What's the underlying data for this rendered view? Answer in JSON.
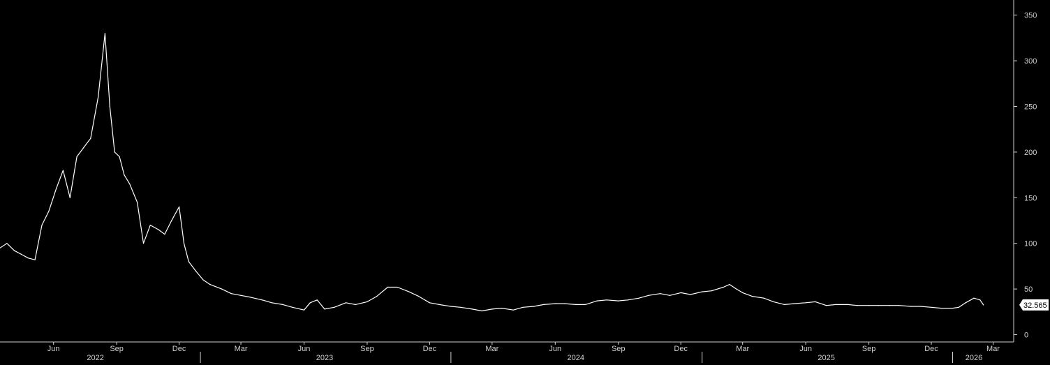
{
  "chart_data": {
    "type": "line",
    "title": "",
    "xlabel": "",
    "ylabel": "",
    "x_range": [
      "2022-03-15",
      "2026-03-31"
    ],
    "ylim": [
      -8,
      362
    ],
    "y_ticks": [
      0,
      50,
      100,
      150,
      200,
      250,
      300,
      350
    ],
    "y_tick_labels": [
      "0",
      "50",
      "100",
      "150",
      "200",
      "250",
      "300",
      "350"
    ],
    "x_month_ticks": [
      {
        "date": "2022-06-01",
        "label": "Jun"
      },
      {
        "date": "2022-09-01",
        "label": "Sep"
      },
      {
        "date": "2022-12-01",
        "label": "Dec"
      },
      {
        "date": "2023-03-01",
        "label": "Mar"
      },
      {
        "date": "2023-06-01",
        "label": "Jun"
      },
      {
        "date": "2023-09-01",
        "label": "Sep"
      },
      {
        "date": "2023-12-01",
        "label": "Dec"
      },
      {
        "date": "2024-03-01",
        "label": "Mar"
      },
      {
        "date": "2024-06-01",
        "label": "Jun"
      },
      {
        "date": "2024-09-01",
        "label": "Sep"
      },
      {
        "date": "2024-12-01",
        "label": "Dec"
      },
      {
        "date": "2025-03-01",
        "label": "Mar"
      },
      {
        "date": "2025-06-01",
        "label": "Jun"
      },
      {
        "date": "2025-09-01",
        "label": "Sep"
      },
      {
        "date": "2025-12-01",
        "label": "Dec"
      },
      {
        "date": "2026-03-01",
        "label": "Mar"
      }
    ],
    "x_year_labels": [
      {
        "date": "2022-08-01",
        "label": "2022"
      },
      {
        "date": "2023-07-01",
        "label": "2023"
      },
      {
        "date": "2024-07-01",
        "label": "2024"
      },
      {
        "date": "2025-07-01",
        "label": "2025"
      },
      {
        "date": "2026-02-01",
        "label": "2026"
      }
    ],
    "year_separators": [
      "2023-01-01",
      "2024-01-01",
      "2025-01-01",
      "2026-01-01"
    ],
    "grid": false,
    "legend": "none",
    "colors": {
      "background": "#000000",
      "line": "#ffffff",
      "axis": "#cfcfcf"
    },
    "last_value_label": "32.565",
    "series": [
      {
        "x": [
          "2022-03-15",
          "2022-03-25",
          "2022-04-05",
          "2022-04-15",
          "2022-04-25",
          "2022-05-05",
          "2022-05-15",
          "2022-05-25",
          "2022-06-05",
          "2022-06-15",
          "2022-06-25",
          "2022-07-05",
          "2022-07-15",
          "2022-07-25",
          "2022-08-05",
          "2022-08-15",
          "2022-08-22",
          "2022-08-29",
          "2022-09-05",
          "2022-09-12",
          "2022-09-20",
          "2022-10-01",
          "2022-10-10",
          "2022-10-20",
          "2022-11-01",
          "2022-11-10",
          "2022-11-20",
          "2022-12-01",
          "2022-12-08",
          "2022-12-15",
          "2022-12-25",
          "2023-01-05",
          "2023-01-15",
          "2023-02-01",
          "2023-02-15",
          "2023-03-01",
          "2023-03-15",
          "2023-04-01",
          "2023-04-15",
          "2023-05-01",
          "2023-05-15",
          "2023-06-01",
          "2023-06-10",
          "2023-06-20",
          "2023-07-01",
          "2023-07-15",
          "2023-08-01",
          "2023-08-15",
          "2023-09-01",
          "2023-09-15",
          "2023-10-01",
          "2023-10-15",
          "2023-11-01",
          "2023-11-15",
          "2023-12-01",
          "2023-12-15",
          "2024-01-01",
          "2024-01-15",
          "2024-02-01",
          "2024-02-15",
          "2024-03-01",
          "2024-03-15",
          "2024-04-01",
          "2024-04-15",
          "2024-05-01",
          "2024-05-15",
          "2024-06-01",
          "2024-06-15",
          "2024-07-01",
          "2024-07-15",
          "2024-08-01",
          "2024-08-15",
          "2024-09-01",
          "2024-09-15",
          "2024-10-01",
          "2024-10-15",
          "2024-11-01",
          "2024-11-15",
          "2024-12-01",
          "2024-12-15",
          "2025-01-01",
          "2025-01-15",
          "2025-02-01",
          "2025-02-10",
          "2025-02-20",
          "2025-03-01",
          "2025-03-15",
          "2025-04-01",
          "2025-04-15",
          "2025-05-01",
          "2025-05-15",
          "2025-06-01",
          "2025-06-15",
          "2025-07-01",
          "2025-07-15",
          "2025-08-01",
          "2025-08-15",
          "2025-09-01",
          "2025-09-15",
          "2025-10-01",
          "2025-10-15",
          "2025-11-01",
          "2025-11-15",
          "2025-12-01",
          "2025-12-15",
          "2026-01-01",
          "2026-01-10",
          "2026-01-20",
          "2026-02-01",
          "2026-02-10",
          "2026-02-15"
        ],
        "y": [
          95,
          100,
          92,
          88,
          84,
          82,
          120,
          135,
          160,
          180,
          150,
          195,
          205,
          215,
          260,
          330,
          250,
          200,
          195,
          175,
          165,
          145,
          100,
          120,
          115,
          110,
          125,
          140,
          100,
          80,
          70,
          60,
          55,
          50,
          45,
          43,
          41,
          38,
          35,
          33,
          30,
          27,
          35,
          38,
          28,
          30,
          35,
          33,
          36,
          42,
          52,
          52,
          47,
          42,
          35,
          33,
          31,
          30,
          28,
          26,
          28,
          29,
          27,
          30,
          31,
          33,
          34,
          34,
          33,
          33,
          37,
          38,
          37,
          38,
          40,
          43,
          45,
          43,
          46,
          44,
          47,
          48,
          52,
          55,
          50,
          46,
          42,
          40,
          36,
          33,
          34,
          35,
          36,
          32,
          33,
          33,
          32,
          32,
          32,
          32,
          32,
          31,
          31,
          30,
          29,
          29,
          30,
          35,
          40,
          38,
          32.565
        ]
      }
    ]
  }
}
